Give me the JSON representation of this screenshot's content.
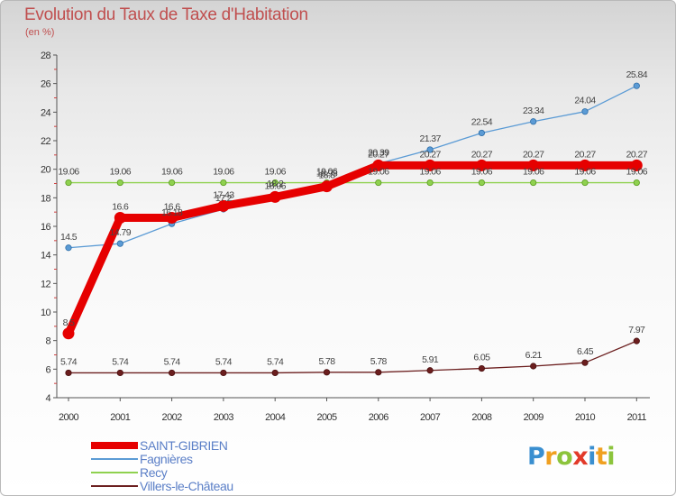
{
  "header": {
    "title": "Evolution du Taux de Taxe d'Habitation",
    "subtitle": "(en %)"
  },
  "logo": {
    "text": "Proxiti",
    "letters": [
      {
        "ch": "P",
        "color": "#3a8fd0"
      },
      {
        "ch": "r",
        "color": "#f0a020"
      },
      {
        "ch": "o",
        "color": "#8cc43c"
      },
      {
        "ch": "x",
        "color": "#e23a2a"
      },
      {
        "ch": "i",
        "color": "#3a8fd0"
      },
      {
        "ch": "t",
        "color": "#f0a020"
      },
      {
        "ch": "i",
        "color": "#8cc43c"
      }
    ]
  },
  "chart_data": {
    "type": "line",
    "title": "Evolution du Taux de Taxe d'Habitation",
    "ylabel": "(en %)",
    "xlabel": "",
    "categories": [
      "2000",
      "2001",
      "2002",
      "2003",
      "2004",
      "2005",
      "2006",
      "2007",
      "2008",
      "2009",
      "2010",
      "2011"
    ],
    "ylim": [
      4,
      28
    ],
    "yticks": [
      4,
      6,
      8,
      10,
      12,
      14,
      16,
      18,
      20,
      22,
      24,
      26,
      28
    ],
    "grid": false,
    "legend_position": "bottom-left",
    "series": [
      {
        "name": "SAINT-GIBRIEN",
        "color": "#e60000",
        "values": [
          8.5,
          16.6,
          16.6,
          17.43,
          18.06,
          18.8,
          20.27,
          20.27,
          20.27,
          20.27,
          20.27,
          20.27
        ],
        "labels": [
          "8.5",
          "16.6",
          "16.6",
          "17.43",
          "18.06",
          "18.8",
          "20.27",
          "20.27",
          "20.27",
          "20.27",
          "20.27",
          "20.27"
        ]
      },
      {
        "name": "Fagnières",
        "color": "#5b9bd5",
        "values": [
          14.5,
          14.79,
          16.18,
          17.2,
          18.2,
          18.93,
          20.39,
          21.37,
          22.54,
          23.34,
          24.04,
          25.84
        ],
        "labels": [
          "14.5",
          "14.79",
          "16.18",
          "17.2",
          "18.2",
          "18.93",
          "20.39",
          "21.37",
          "22.54",
          "23.34",
          "24.04",
          "25.84"
        ]
      },
      {
        "name": "Recy",
        "color": "#8fd14f",
        "values": [
          19.06,
          19.06,
          19.06,
          19.06,
          19.06,
          19.06,
          19.06,
          19.06,
          19.06,
          19.06,
          19.06,
          19.06
        ],
        "labels": [
          "19.06",
          "19.06",
          "19.06",
          "19.06",
          "19.06",
          "19.06",
          "19.06",
          "19.06",
          "19.06",
          "19.06",
          "19.06",
          "19.06"
        ]
      },
      {
        "name": "Villers-le-Château",
        "color": "#6b1e1e",
        "values": [
          5.74,
          5.74,
          5.74,
          5.74,
          5.74,
          5.78,
          5.78,
          5.91,
          6.05,
          6.21,
          6.45,
          7.97
        ],
        "labels": [
          "5.74",
          "5.74",
          "5.74",
          "5.74",
          "5.74",
          "5.78",
          "5.78",
          "5.91",
          "6.05",
          "6.21",
          "6.45",
          "7.97"
        ]
      }
    ]
  }
}
